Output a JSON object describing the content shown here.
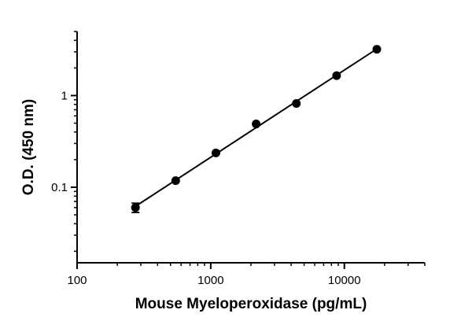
{
  "chart_data": {
    "type": "scatter",
    "title": "",
    "xlabel": "Mouse Myeloperoxidase (pg/mL)",
    "ylabel": "O.D. (450 nm)",
    "x_scale": "log",
    "y_scale": "log",
    "xlim": [
      100,
      40000
    ],
    "ylim": [
      0.015,
      5
    ],
    "x_ticks": [
      100,
      1000,
      10000
    ],
    "x_tick_labels": [
      "100",
      "1000",
      "10000"
    ],
    "y_ticks": [
      0.1,
      1
    ],
    "y_tick_labels": [
      "0.1",
      "1"
    ],
    "grid": false,
    "legend": "none",
    "series": [
      {
        "x": [
          273.4,
          546.9,
          1094,
          2188,
          4375,
          8750,
          17500
        ],
        "y": [
          0.06,
          0.118,
          0.237,
          0.49,
          0.82,
          1.65,
          3.2
        ],
        "y_err": [
          0.007,
          0,
          0,
          0,
          0,
          0,
          0
        ],
        "fit": "log-log linear",
        "color": "#000000"
      }
    ]
  }
}
